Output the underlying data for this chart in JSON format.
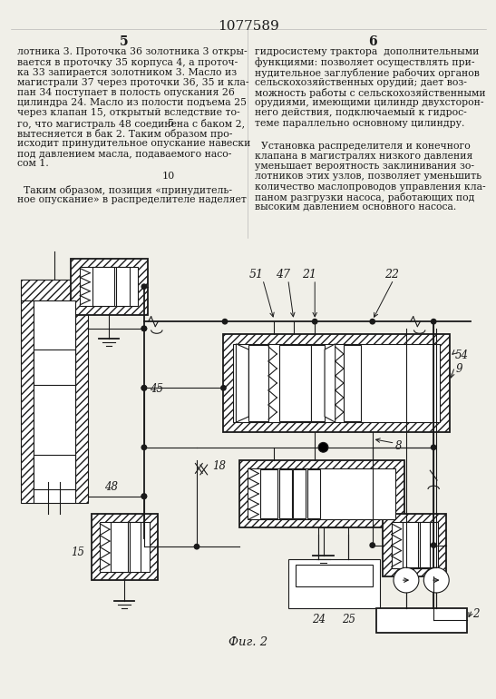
{
  "title": "1077589",
  "page_num_left": "5",
  "page_num_right": "6",
  "line_number_5": "5",
  "line_number_10": "10",
  "text_col1_line1": "лотника 3. Проточка 36 золотника 3 откры-",
  "text_col1_line2": "вается в проточку 35 корпуса 4, а проточ-",
  "text_col1_line3": "ка 33 запирается золотником 3. Масло из",
  "text_col1_line4": "магистрали 37 через проточки 36, 35 и кла-",
  "text_col1_line5": "пан 34 поступает в полость опускания 26",
  "text_col1_line6": "цилиндра 24. Масло из полости подъема 25",
  "text_col1_line7": "через клапан 15, открытый вследствие то-",
  "text_col1_line8": "го, что магистраль 48 соединена с баком 2,",
  "text_col1_line9": "вытесняется в бак 2. Таким образом про-",
  "text_col1_line10": "исходит принудительное опускание навески",
  "text_col1_line11": "под давлением масла, подаваемого насо-",
  "text_col1_line12": "сом 1.",
  "text_col1_p2_l1": "Таким образом, позиция «принудитель-",
  "text_col1_p2_l2": "ное опускание» в распределителе наделяет",
  "text_col2_line1": "гидросистему трактора  дополнительными",
  "text_col2_line2": "функциями: позволяет осуществлять при-",
  "text_col2_line3": "нудительное заглубление рабочих органов",
  "text_col2_line4": "сельскохозяйственных орудий; дает воз-",
  "text_col2_line5": "можность работы с сельскохозяйственными",
  "text_col2_line6": "орудиями, имеющими цилиндр двухсторон-",
  "text_col2_line7": "него действия, подключаемый к гидрос-",
  "text_col2_line8": "теме параллельно основному цилиндру.",
  "text_col2_p2_l1": "Установка распределителя и конечного",
  "text_col2_p2_l2": "клапана в магистралях низкого давления",
  "text_col2_p2_l3": "уменьшает вероятность заклинивания зо-",
  "text_col2_p2_l4": "лотников этих узлов, позволяет уменьшить",
  "text_col2_p2_l5": "количество маслопроводов управления кла-",
  "text_col2_p2_l6": "паном разгрузки насоса, работающих под",
  "text_col2_p2_l7": "высоким давлением основного насоса.",
  "fig_caption": "Фиг. 2",
  "bg_color": "#f0efe8",
  "line_color": "#1a1a1a"
}
